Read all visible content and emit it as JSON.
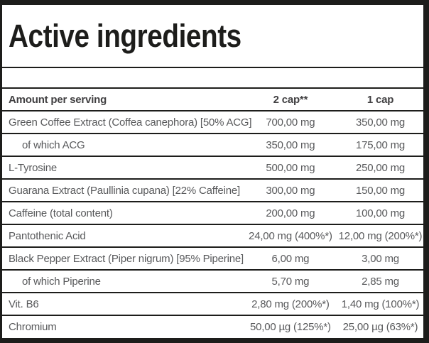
{
  "title": "Active ingredients",
  "table": {
    "headers": [
      "Amount per serving",
      "2 cap**",
      "1 cap"
    ],
    "rows": [
      {
        "name": "Green Coffee Extract (Coffea canephora) [50% ACG]",
        "cap2": "700,00 mg",
        "cap1": "350,00 mg",
        "indent": false
      },
      {
        "name": "of which ACG",
        "cap2": "350,00 mg",
        "cap1": "175,00 mg",
        "indent": true
      },
      {
        "name": "L-Tyrosine",
        "cap2": "500,00 mg",
        "cap1": "250,00 mg",
        "indent": false
      },
      {
        "name": "Guarana Extract (Paullinia cupana) [22% Caffeine]",
        "cap2": "300,00 mg",
        "cap1": "150,00 mg",
        "indent": false
      },
      {
        "name": "Caffeine (total content)",
        "cap2": "200,00 mg",
        "cap1": "100,00 mg",
        "indent": false
      },
      {
        "name": "Pantothenic Acid",
        "cap2": "24,00 mg (400%*)",
        "cap1": "12,00 mg (200%*)",
        "indent": false
      },
      {
        "name": "Black Pepper Extract (Piper nigrum) [95% Piperine]",
        "cap2": "6,00 mg",
        "cap1": "3,00 mg",
        "indent": false
      },
      {
        "name": "of which Piperine",
        "cap2": "5,70 mg",
        "cap1": "2,85 mg",
        "indent": true
      },
      {
        "name": "Vit. B6",
        "cap2": "2,80 mg (200%*)",
        "cap1": "1,40 mg (100%*)",
        "indent": false
      },
      {
        "name": "Chromium",
        "cap2": "50,00 µg (125%*)",
        "cap1": "25,00 µg (63%*)",
        "indent": false
      }
    ]
  },
  "colors": {
    "border": "#1d1d1b",
    "title_text": "#1d1d1b",
    "header_text": "#414042",
    "body_text": "#58595b",
    "background": "#ffffff"
  }
}
